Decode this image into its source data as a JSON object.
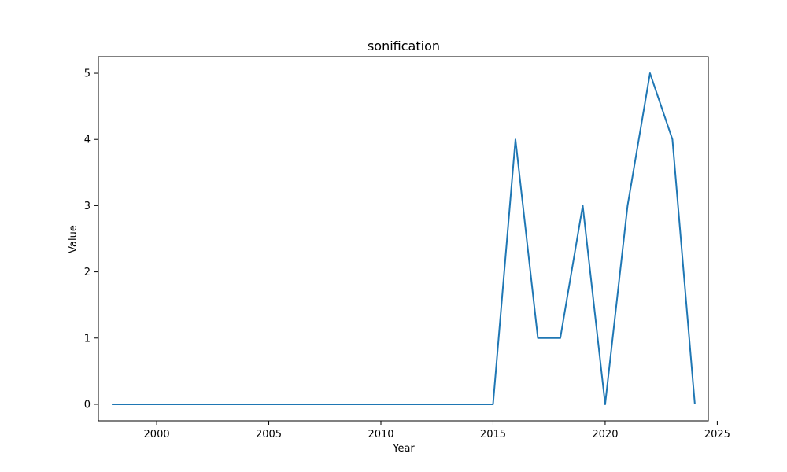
{
  "chart_data": {
    "type": "line",
    "title": "sonification",
    "xlabel": "Year",
    "ylabel": "Value",
    "xlim": [
      1997.4,
      2024.6
    ],
    "ylim": [
      -0.25,
      5.25
    ],
    "grid": false,
    "x": [
      1998,
      1999,
      2000,
      2001,
      2002,
      2003,
      2004,
      2005,
      2006,
      2007,
      2008,
      2009,
      2010,
      2011,
      2012,
      2013,
      2014,
      2015,
      2016,
      2017,
      2018,
      2019,
      2020,
      2021,
      2022,
      2023,
      2024
    ],
    "series": [
      {
        "color": "#1f77b4",
        "values": [
          0,
          0,
          0,
          0,
          0,
          0,
          0,
          0,
          0,
          0,
          0,
          0,
          0,
          0,
          0,
          0,
          0,
          0,
          4,
          1,
          1,
          3,
          0,
          3,
          5,
          4,
          0
        ]
      }
    ],
    "x_ticks": [
      2000,
      2005,
      2010,
      2015,
      2020,
      2025
    ],
    "y_ticks": [
      0,
      1,
      2,
      3,
      4,
      5
    ],
    "x_tick_labels": [
      "2000",
      "2005",
      "2010",
      "2015",
      "2020",
      "2025"
    ],
    "y_tick_labels": [
      "0",
      "1",
      "2",
      "3",
      "4",
      "5"
    ]
  }
}
